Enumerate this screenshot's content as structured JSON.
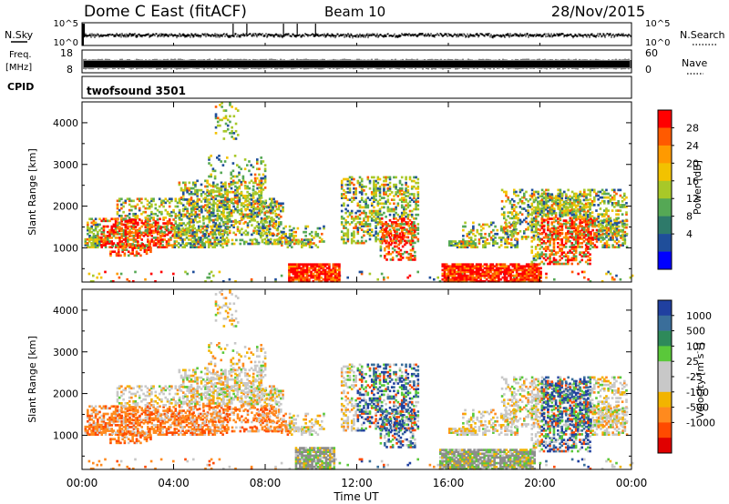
{
  "header": {
    "title": "Dome C East (fitACF)",
    "beam": "Beam 10",
    "date": "28/Nov/2015"
  },
  "status_panels": {
    "nsky_label": "N.Sky",
    "nsky_ticks": [
      "10^5",
      "10^0"
    ],
    "nsearch_label": "N.Search",
    "nsearch_ticks": [
      "10^5",
      "10^0"
    ],
    "freq_label": "Freq.",
    "freq_unit": "[MHz]",
    "freq_ticks": [
      "18",
      "8"
    ],
    "nave_label": "Nave",
    "nave_ticks": [
      "60",
      "0"
    ],
    "cpid_label": "CPID",
    "cpid_value": "twofsound 3501"
  },
  "chart_data": [
    {
      "type": "heatmap",
      "title": "",
      "xlabel": "",
      "ylabel": "Slant Range [km]",
      "x_ticks": [
        "00:00",
        "04:00",
        "08:00",
        "12:00",
        "16:00",
        "20:00",
        "00:00"
      ],
      "xlim_hours": [
        0,
        24
      ],
      "y_ticks": [
        1000,
        2000,
        3000,
        4000
      ],
      "ylim_km": [
        180,
        4500
      ],
      "colorbar": {
        "label": "Power [dB]",
        "ticks": [
          "28",
          "24",
          "20",
          "16",
          "12",
          "8",
          "4"
        ],
        "colors": [
          "#ff0000",
          "#ff5a00",
          "#ff9a00",
          "#f2c200",
          "#a8c828",
          "#55a855",
          "#2e7a6a",
          "#1f4e9a",
          "#0000ff"
        ]
      },
      "grid": false
    },
    {
      "type": "heatmap",
      "title": "",
      "xlabel": "Time UT",
      "ylabel": "Slant Range [km]",
      "x_ticks": [
        "00:00",
        "04:00",
        "08:00",
        "12:00",
        "16:00",
        "20:00",
        "00:00"
      ],
      "xlim_hours": [
        0,
        24
      ],
      "y_ticks": [
        1000,
        2000,
        3000,
        4000
      ],
      "ylim_km": [
        180,
        4500
      ],
      "colorbar": {
        "label": "Velocity [m s",
        "label_sup": "-1",
        "label_end": "]",
        "ticks": [
          "1000",
          "500",
          "100",
          "25",
          "-25",
          "-100",
          "-500",
          "-1000"
        ],
        "colors": [
          "#2040a0",
          "#3a6e9a",
          "#2e8a5a",
          "#5ac83a",
          "#c8c8c8",
          "#c8c8c8",
          "#f2b400",
          "#ff8a1e",
          "#ff4a00",
          "#e00000"
        ]
      },
      "grid": false
    }
  ],
  "colors": {
    "frame": "#000000",
    "ground_scatter": "#8c8c8c"
  }
}
